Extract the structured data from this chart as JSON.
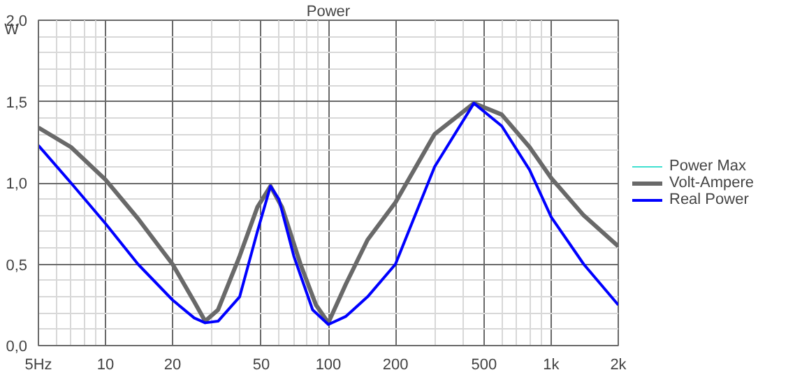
{
  "chart_data": {
    "type": "line",
    "title": "Power",
    "ylabel": "W",
    "log": "x",
    "grid": true,
    "legend": "right",
    "line_style": "solid",
    "marker": "none",
    "xlim": [
      5,
      2000
    ],
    "ylim": [
      0,
      2.0
    ],
    "xticks": [
      {
        "value": 5,
        "label": "5Hz"
      },
      10,
      20,
      50,
      100,
      200,
      500,
      {
        "value": 1000,
        "label": "1k"
      },
      {
        "value": 2000,
        "label": "2k"
      }
    ],
    "yticks": [
      {
        "value": 0,
        "label": "0,0"
      },
      {
        "value": 0.5,
        "label": "0,5"
      },
      {
        "value": 1.0,
        "label": "1,0"
      },
      {
        "value": 1.5,
        "label": "1,5"
      },
      {
        "value": 2.0,
        "label": "2,0"
      }
    ],
    "series": [
      {
        "name": "Power Max",
        "color": "#40e0d0"
      },
      {
        "name": "Volt-Ampere",
        "color": "#696969",
        "x": [
          5,
          7,
          10,
          14,
          20,
          25,
          28,
          32,
          40,
          48,
          55,
          62,
          75,
          88,
          100,
          120,
          150,
          200,
          300,
          450,
          600,
          800,
          1000,
          1400,
          2000
        ],
        "values": [
          1.34,
          1.22,
          1.02,
          0.78,
          0.5,
          0.27,
          0.15,
          0.22,
          0.55,
          0.85,
          0.98,
          0.85,
          0.5,
          0.25,
          0.14,
          0.38,
          0.65,
          0.88,
          1.3,
          1.49,
          1.42,
          1.22,
          1.03,
          0.8,
          0.61
        ]
      },
      {
        "name": "Real Power",
        "color": "#0000ff",
        "x": [
          5,
          7,
          10,
          14,
          20,
          25,
          28,
          32,
          40,
          48,
          55,
          60,
          70,
          85,
          100,
          120,
          150,
          200,
          300,
          450,
          600,
          800,
          1000,
          1400,
          2000
        ],
        "values": [
          1.23,
          1.0,
          0.75,
          0.5,
          0.28,
          0.17,
          0.14,
          0.15,
          0.3,
          0.7,
          0.98,
          0.9,
          0.55,
          0.22,
          0.13,
          0.18,
          0.3,
          0.5,
          1.1,
          1.49,
          1.35,
          1.08,
          0.79,
          0.5,
          0.25
        ]
      }
    ]
  }
}
